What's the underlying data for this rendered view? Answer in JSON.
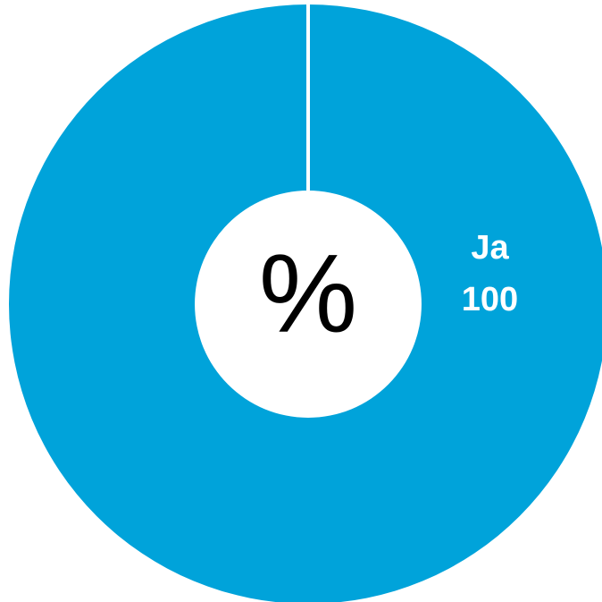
{
  "chart_data": {
    "type": "donut",
    "center_label": "%",
    "categories": [
      "Ja"
    ],
    "values": [
      100
    ],
    "colors": [
      "#00a3da"
    ]
  }
}
